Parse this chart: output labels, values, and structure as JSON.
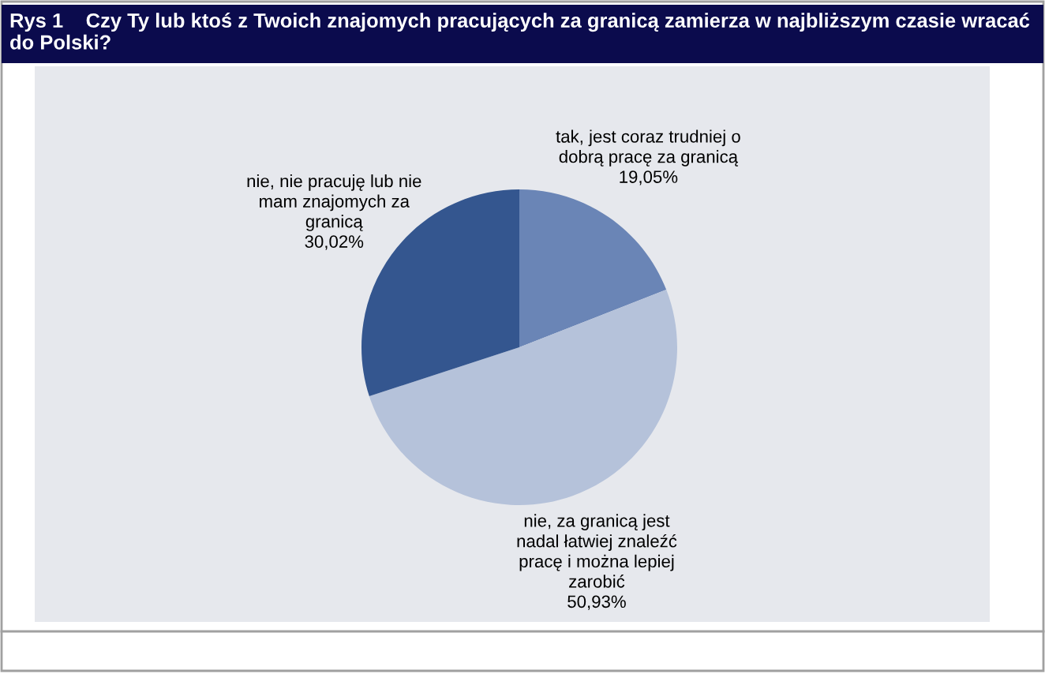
{
  "chart_data": {
    "type": "pie",
    "title": "Rys 1    Czy Ty lub ktoś z Twoich znajomych pracujących za granicą zamierza w najbliższym czasie wracać do Polski?",
    "categories": [
      "tak, jest coraz trudniej o\ndobrą pracę za granicą",
      "nie, za granicą jest\nnadal łatwiej znaleźć\npracę i można lepiej\nzarobić",
      "nie, nie pracuję lub nie\nmam znajomych za\ngranicą"
    ],
    "values": [
      19.05,
      50.93,
      30.02
    ],
    "value_labels": [
      "19,05%",
      "50,93%",
      "30,02%"
    ],
    "colors": [
      "#6a85b6",
      "#b5c2da",
      "#34568f"
    ]
  }
}
